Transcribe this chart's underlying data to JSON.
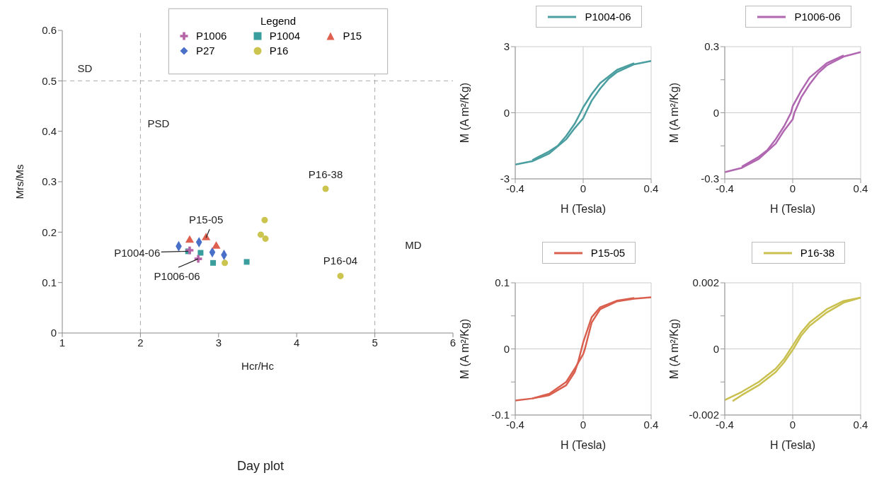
{
  "chart_data": [
    {
      "type": "scatter",
      "title": "Day plot",
      "xlabel": "Hcr/Hc",
      "ylabel": "Mrs/Ms",
      "legend_title": "Legend",
      "legend": "top",
      "xlim": [
        1,
        6
      ],
      "xticks": [
        1,
        2,
        3,
        4,
        5,
        6
      ],
      "ylim": [
        0,
        0.6
      ],
      "yticks": [
        0,
        0.1,
        0.2,
        0.3,
        0.4,
        0.5,
        0.6
      ],
      "series": [
        {
          "name": "P1006",
          "color": "#b565a7",
          "marker": "cross",
          "x": [
            2.63,
            2.74
          ],
          "values": [
            0.164,
            0.147
          ]
        },
        {
          "name": "P1004",
          "color": "#3a9e9e",
          "marker": "square",
          "x": [
            2.61,
            2.77,
            2.93,
            3.36
          ],
          "values": [
            0.162,
            0.159,
            0.139,
            0.141
          ]
        },
        {
          "name": "P15",
          "color": "#e0604f",
          "marker": "triangle",
          "x": [
            2.63,
            2.84,
            2.97
          ],
          "values": [
            0.184,
            0.189,
            0.172
          ]
        },
        {
          "name": "P27",
          "color": "#4a6fc8",
          "marker": "diamond",
          "x": [
            2.49,
            2.75,
            2.92,
            3.07
          ],
          "values": [
            0.172,
            0.18,
            0.16,
            0.155
          ]
        },
        {
          "name": "P16",
          "color": "#cbc44f",
          "marker": "circle",
          "x": [
            4.37,
            3.59,
            3.54,
            3.6,
            3.08,
            4.56
          ],
          "values": [
            0.286,
            0.224,
            0.195,
            0.187,
            0.139,
            0.113
          ]
        }
      ],
      "ref_lines": [
        {
          "axis": "x",
          "value": 2,
          "color": "#aaaaaa",
          "line_style": "dashed"
        },
        {
          "axis": "x",
          "value": 5,
          "color": "#aaaaaa",
          "line_style": "dashed"
        },
        {
          "axis": "y",
          "value": 0.5,
          "color": "#aaaaaa",
          "line_style": "dashed"
        }
      ],
      "annotations": [
        "SD",
        "PSD",
        "MD",
        {
          "text": "P16-38",
          "x": 4.37,
          "y": 0.286
        },
        {
          "text": "P16-04",
          "x": 4.56,
          "y": 0.113
        },
        {
          "text": "P15-05",
          "x": 2.84,
          "y": 0.189
        },
        {
          "text": "P1004-06",
          "x": 2.61,
          "y": 0.162
        },
        {
          "text": "P1006-06",
          "x": 2.74,
          "y": 0.147
        }
      ]
    },
    {
      "type": "line",
      "xlabel": "H (Tesla)",
      "ylabel": "M (A m²/Kg)",
      "legend": "top",
      "grid": true,
      "xlim": [
        -0.4,
        0.4
      ],
      "xticks": [
        -0.4,
        0,
        0.4
      ],
      "ylim": [
        -3,
        3
      ],
      "yticks": [
        -3,
        0,
        3
      ],
      "series": [
        {
          "name": "P1004-06",
          "color": "#4a9e9f",
          "x": [
            -0.4,
            -0.3,
            -0.2,
            -0.1,
            -0.05,
            0,
            0.015,
            0.05,
            0.1,
            0.15,
            0.2,
            0.3,
            0.4
          ],
          "values": [
            -2.35,
            -2.2,
            -1.85,
            -1.2,
            -0.7,
            -0.25,
            0,
            0.55,
            1.1,
            1.55,
            1.85,
            2.2,
            2.35
          ]
        },
        {
          "color": "#4a9e9f",
          "x": [
            0.3,
            0.2,
            0.1,
            0.05,
            0,
            -0.016,
            -0.05,
            -0.1,
            -0.15,
            -0.2,
            -0.3
          ],
          "values": [
            2.25,
            1.95,
            1.35,
            0.85,
            0.25,
            0,
            -0.5,
            -1.05,
            -1.5,
            -1.75,
            -2.15
          ]
        }
      ]
    },
    {
      "type": "line",
      "xlabel": "H (Tesla)",
      "ylabel": "M (A m²/Kg)",
      "legend": "top",
      "grid": true,
      "xlim": [
        -0.4,
        0.4
      ],
      "xticks": [
        -0.4,
        0,
        0.4
      ],
      "ylim": [
        -0.3,
        0.3
      ],
      "yticks": [
        -0.3,
        {
          "value": -0.15,
          "label": null
        },
        0,
        {
          "value": 0.15,
          "label": null
        },
        0.3
      ],
      "series": [
        {
          "name": "P1006-06",
          "color": "#b066b0",
          "x": [
            -0.4,
            -0.3,
            -0.2,
            -0.1,
            -0.05,
            0,
            0.01,
            0.05,
            0.1,
            0.15,
            0.2,
            0.3,
            0.4
          ],
          "values": [
            -0.27,
            -0.25,
            -0.21,
            -0.14,
            -0.08,
            -0.03,
            0,
            0.07,
            0.13,
            0.18,
            0.215,
            0.255,
            0.275
          ]
        },
        {
          "color": "#b066b0",
          "x": [
            0.3,
            0.2,
            0.1,
            0.05,
            0,
            -0.01,
            -0.05,
            -0.1,
            -0.15,
            -0.2,
            -0.3
          ],
          "values": [
            0.26,
            0.225,
            0.16,
            0.1,
            0.03,
            0,
            -0.06,
            -0.12,
            -0.17,
            -0.2,
            -0.245
          ]
        }
      ]
    },
    {
      "type": "line",
      "xlabel": "H (Tesla)",
      "ylabel": "M (A m²/Kg)",
      "legend": "top",
      "grid": true,
      "xlim": [
        -0.4,
        0.4
      ],
      "xticks": [
        -0.4,
        0,
        0.4
      ],
      "ylim": [
        -0.1,
        0.1
      ],
      "yticks": [
        -0.1,
        {
          "value": -0.05,
          "label": null
        },
        0,
        {
          "value": 0.05,
          "label": null
        },
        0.1
      ],
      "series": [
        {
          "name": "P15-05",
          "color": "#d9604f",
          "x": [
            -0.4,
            -0.3,
            -0.2,
            -0.1,
            -0.05,
            0,
            0.01,
            0.03,
            0.05,
            0.1,
            0.2,
            0.3,
            0.4
          ],
          "values": [
            -0.078,
            -0.075,
            -0.068,
            -0.05,
            -0.03,
            -0.008,
            0,
            0.02,
            0.04,
            0.06,
            0.072,
            0.076,
            0.078
          ]
        },
        {
          "color": "#d9604f",
          "x": [
            0.3,
            0.2,
            0.1,
            0.05,
            0,
            -0.01,
            -0.03,
            -0.05,
            -0.1,
            -0.2,
            -0.3
          ],
          "values": [
            0.077,
            0.073,
            0.063,
            0.048,
            0.01,
            0,
            -0.02,
            -0.035,
            -0.055,
            -0.07,
            -0.075
          ]
        }
      ]
    },
    {
      "type": "line",
      "xlabel": "H (Tesla)",
      "ylabel": "M (A m²/Kg)",
      "legend": "top",
      "grid": true,
      "xlim": [
        -0.4,
        0.4
      ],
      "xticks": [
        -0.4,
        0,
        0.4
      ],
      "ylim": [
        -0.002,
        0.002
      ],
      "yticks": [
        -0.002,
        {
          "value": -0.001,
          "label": null
        },
        0,
        {
          "value": 0.001,
          "label": null
        },
        0.002
      ],
      "series": [
        {
          "name": "P16-38",
          "color": "#c9c050",
          "x": [
            -0.354,
            -0.3,
            -0.2,
            -0.1,
            -0.05,
            0.004,
            0.05,
            0.1,
            0.2,
            0.3,
            0.4
          ],
          "values": [
            -0.00158,
            -0.0014,
            -0.0011,
            -0.0007,
            -0.0004,
            0,
            0.0004,
            0.0007,
            0.0011,
            0.0014,
            0.00155
          ]
        },
        {
          "color": "#c9c050",
          "x": [
            0.4,
            0.3,
            0.2,
            0.1,
            0.05,
            0,
            -0.05,
            -0.1,
            -0.2,
            -0.3,
            -0.4
          ],
          "values": [
            0.00155,
            0.00145,
            0.0012,
            0.0008,
            0.0005,
            0.0001,
            -0.0003,
            -0.0006,
            -0.001,
            -0.0013,
            -0.00155
          ]
        }
      ]
    }
  ]
}
